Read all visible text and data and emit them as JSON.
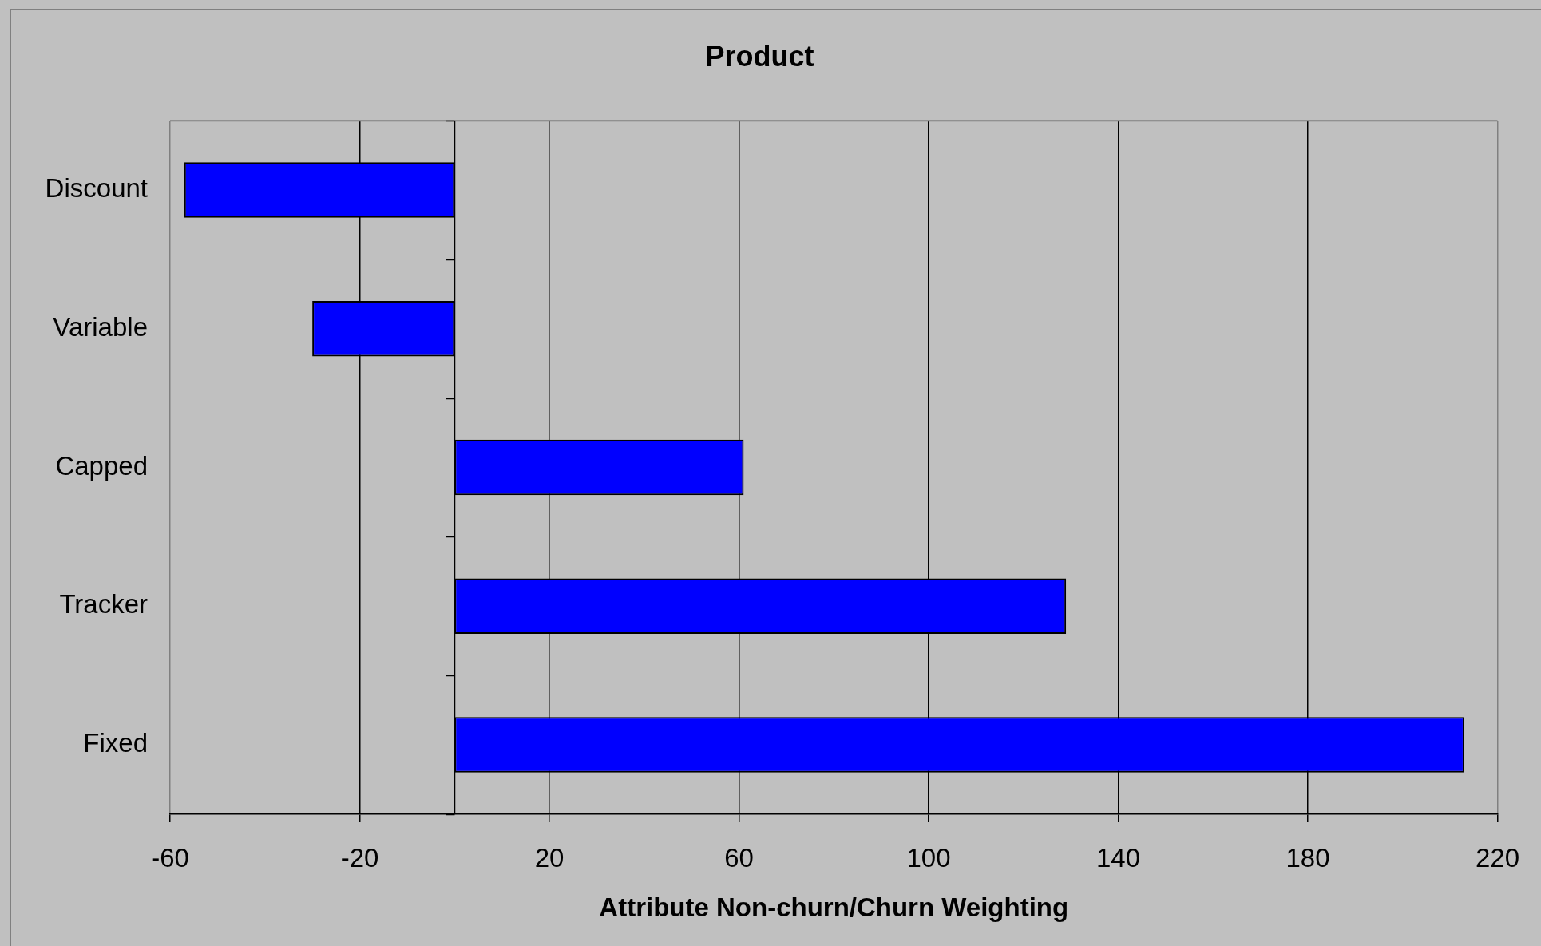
{
  "chart_data": {
    "type": "bar",
    "orientation": "horizontal",
    "title": "Product",
    "xlabel": "Attribute Non-churn/Churn Weighting",
    "categories": [
      "Discount",
      "Variable",
      "Capped",
      "Tracker",
      "Fixed"
    ],
    "values": [
      -57,
      -30,
      61,
      129,
      213
    ],
    "color": "#0000ff",
    "xlim": [
      -60,
      220
    ],
    "xticks": [
      -60,
      -20,
      20,
      60,
      100,
      140,
      180,
      220
    ],
    "grid": "x"
  }
}
